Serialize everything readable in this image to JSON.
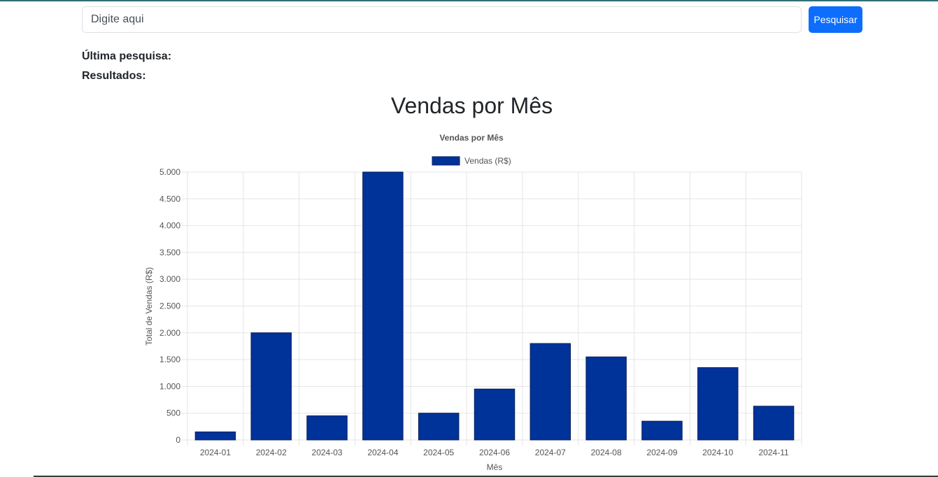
{
  "search": {
    "placeholder": "Digite aqui",
    "value": "",
    "button_label": "Pesquisar"
  },
  "info": {
    "last_search_label": "Última pesquisa:",
    "results_label": "Resultados:"
  },
  "page": {
    "heading": "Vendas por Mês"
  },
  "colors": {
    "bar": "#003399",
    "bar_border": "#0a1f5c",
    "primary_button": "#0d6efd"
  },
  "chart_data": {
    "type": "bar",
    "title": "Vendas por Mês",
    "categories": [
      "2024-01",
      "2024-02",
      "2024-03",
      "2024-04",
      "2024-05",
      "2024-06",
      "2024-07",
      "2024-08",
      "2024-09",
      "2024-10",
      "2024-11"
    ],
    "series": [
      {
        "name": "Vendas (R$)",
        "values": [
          150,
          2000,
          450,
          5000,
          500,
          950,
          1800,
          1550,
          350,
          1350,
          630
        ]
      }
    ],
    "xlabel": "Mês",
    "ylabel": "Total de Vendas (R$)",
    "ylim": [
      0,
      5000
    ],
    "yticks": [
      0,
      500,
      1000,
      1500,
      2000,
      2500,
      3000,
      3500,
      4000,
      4500,
      5000
    ],
    "ytick_labels": [
      "0",
      "500",
      "1.000",
      "1.500",
      "2.000",
      "2.500",
      "3.000",
      "3.500",
      "4.000",
      "4.500",
      "5.000"
    ],
    "grid": true,
    "legend_position": "top"
  }
}
